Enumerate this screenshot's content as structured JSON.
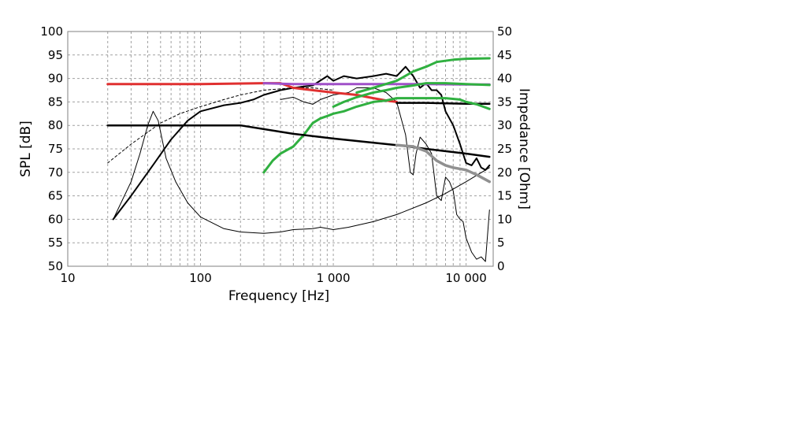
{
  "chart_data": {
    "type": "line",
    "title": "",
    "xlabel": "Frequency [Hz]",
    "ylabel": "SPL [dB]",
    "y2label": "Impedance [Ohm]",
    "xscale": "log",
    "xlim": [
      10,
      16000
    ],
    "ylim": [
      50,
      100
    ],
    "y2lim": [
      0,
      50
    ],
    "grid": true,
    "legend": "none",
    "x_ticks": [
      {
        "value": 10,
        "label": "10"
      },
      {
        "value": 100,
        "label": "100"
      },
      {
        "value": 1000,
        "label": "1 000"
      },
      {
        "value": 10000,
        "label": "10 000"
      }
    ],
    "y_ticks": [
      {
        "value": 50,
        "label": "50"
      },
      {
        "value": 55,
        "label": "55"
      },
      {
        "value": 60,
        "label": "60"
      },
      {
        "value": 65,
        "label": "65"
      },
      {
        "value": 70,
        "label": "70"
      },
      {
        "value": 75,
        "label": "75"
      },
      {
        "value": 80,
        "label": "80"
      },
      {
        "value": 85,
        "label": "85"
      },
      {
        "value": 90,
        "label": "90"
      },
      {
        "value": 95,
        "label": "95"
      },
      {
        "value": 100,
        "label": "100"
      }
    ],
    "y2_ticks": [
      {
        "value": 0,
        "label": "0"
      },
      {
        "value": 5,
        "label": "5"
      },
      {
        "value": 10,
        "label": "10"
      },
      {
        "value": 15,
        "label": "15"
      },
      {
        "value": 20,
        "label": "20"
      },
      {
        "value": 25,
        "label": "25"
      },
      {
        "value": 30,
        "label": "30"
      },
      {
        "value": 35,
        "label": "35"
      },
      {
        "value": 40,
        "label": "40"
      },
      {
        "value": 45,
        "label": "45"
      },
      {
        "value": 50,
        "label": "50"
      }
    ],
    "series": [
      {
        "axis": "left",
        "color": "#000000",
        "width": 2,
        "dash": "",
        "points": [
          [
            22,
            60
          ],
          [
            30,
            65
          ],
          [
            45,
            72
          ],
          [
            60,
            77
          ],
          [
            80,
            81
          ],
          [
            100,
            83
          ],
          [
            150,
            84.3
          ],
          [
            200,
            84.8
          ],
          [
            250,
            85.5
          ],
          [
            300,
            86.5
          ],
          [
            400,
            87.5
          ],
          [
            500,
            88
          ],
          [
            700,
            88.5
          ],
          [
            900,
            90.5
          ],
          [
            1000,
            89.5
          ],
          [
            1200,
            90.5
          ],
          [
            1500,
            90
          ],
          [
            2000,
            90.5
          ],
          [
            2500,
            91
          ],
          [
            3000,
            90.5
          ],
          [
            3500,
            92.5
          ],
          [
            4000,
            90.5
          ],
          [
            4500,
            88
          ],
          [
            5000,
            89
          ],
          [
            5500,
            87.5
          ],
          [
            6000,
            87.5
          ],
          [
            6500,
            86.5
          ],
          [
            7000,
            83
          ],
          [
            8000,
            80
          ],
          [
            9000,
            76
          ],
          [
            10000,
            72
          ],
          [
            11000,
            71.5
          ],
          [
            12000,
            73
          ],
          [
            13000,
            71
          ],
          [
            14000,
            70.5
          ],
          [
            15000,
            71.5
          ]
        ]
      },
      {
        "axis": "left",
        "color": "#000000",
        "width": 1,
        "dash": "",
        "points": [
          [
            22,
            60
          ],
          [
            30,
            68
          ],
          [
            35,
            74
          ],
          [
            40,
            80
          ],
          [
            44,
            83
          ],
          [
            48,
            81
          ],
          [
            55,
            73
          ],
          [
            65,
            68
          ],
          [
            80,
            63.5
          ],
          [
            100,
            60.5
          ],
          [
            150,
            58
          ],
          [
            200,
            57.3
          ],
          [
            300,
            57
          ],
          [
            400,
            57.3
          ],
          [
            500,
            57.8
          ],
          [
            700,
            58
          ],
          [
            800,
            58.3
          ],
          [
            1000,
            57.8
          ],
          [
            1300,
            58.3
          ],
          [
            2000,
            59.5
          ],
          [
            3000,
            61
          ],
          [
            5000,
            63.5
          ],
          [
            7000,
            65.5
          ],
          [
            10000,
            68
          ],
          [
            15000,
            71
          ]
        ]
      },
      {
        "axis": "left",
        "color": "#000000",
        "width": 1,
        "dash": "",
        "points": [
          [
            400,
            85.5
          ],
          [
            500,
            86
          ],
          [
            600,
            85
          ],
          [
            700,
            84.5
          ],
          [
            800,
            85.5
          ],
          [
            1000,
            86.5
          ],
          [
            1300,
            87
          ],
          [
            1500,
            88
          ],
          [
            2000,
            88
          ],
          [
            2500,
            87
          ],
          [
            3000,
            85
          ],
          [
            3500,
            78
          ],
          [
            3800,
            70
          ],
          [
            4000,
            69.5
          ],
          [
            4200,
            74
          ],
          [
            4500,
            77.5
          ],
          [
            5000,
            76
          ],
          [
            5500,
            74
          ],
          [
            6000,
            65
          ],
          [
            6500,
            64
          ],
          [
            7000,
            69
          ],
          [
            7500,
            68
          ],
          [
            8000,
            66
          ],
          [
            8500,
            61
          ],
          [
            9000,
            60
          ],
          [
            9500,
            59.5
          ],
          [
            10000,
            56
          ],
          [
            11000,
            53
          ],
          [
            12000,
            51.5
          ],
          [
            13000,
            52
          ],
          [
            14000,
            51
          ],
          [
            15000,
            62
          ]
        ]
      },
      {
        "axis": "left",
        "color": "#000000",
        "width": 1,
        "dash": "3,3",
        "points": [
          [
            20,
            72
          ],
          [
            30,
            76
          ],
          [
            50,
            80.5
          ],
          [
            70,
            82.5
          ],
          [
            100,
            84
          ],
          [
            150,
            85.5
          ],
          [
            200,
            86.5
          ],
          [
            300,
            87.5
          ],
          [
            500,
            88
          ],
          [
            700,
            88
          ],
          [
            1000,
            87.5
          ]
        ]
      },
      {
        "axis": "left",
        "color": "#e03030",
        "width": 3,
        "dash": "",
        "points": [
          [
            20,
            88.8
          ],
          [
            100,
            88.8
          ],
          [
            300,
            89
          ],
          [
            400,
            89
          ],
          [
            500,
            88
          ],
          [
            700,
            87.5
          ],
          [
            1000,
            87
          ],
          [
            1500,
            86.5
          ],
          [
            2000,
            85.8
          ],
          [
            2500,
            85.3
          ],
          [
            3000,
            85
          ]
        ]
      },
      {
        "axis": "left",
        "color": "#a050c8",
        "width": 3,
        "dash": "",
        "points": [
          [
            300,
            89
          ],
          [
            500,
            88.8
          ],
          [
            1000,
            88.8
          ],
          [
            2000,
            88.8
          ],
          [
            5000,
            88.8
          ],
          [
            10000,
            88.7
          ],
          [
            15000,
            88.7
          ]
        ]
      },
      {
        "axis": "left",
        "color": "#000000",
        "width": 2.5,
        "dash": "",
        "points": [
          [
            3000,
            84.8
          ],
          [
            5000,
            84.8
          ],
          [
            10000,
            84.6
          ],
          [
            15000,
            84.6
          ]
        ]
      },
      {
        "axis": "left",
        "color": "#30b040",
        "width": 3,
        "dash": "",
        "points": [
          [
            300,
            70
          ],
          [
            350,
            72.5
          ],
          [
            400,
            74
          ],
          [
            500,
            75.5
          ],
          [
            600,
            78
          ],
          [
            700,
            80.5
          ],
          [
            800,
            81.5
          ],
          [
            900,
            82
          ],
          [
            1000,
            82.5
          ],
          [
            1200,
            83
          ],
          [
            1500,
            84
          ],
          [
            2000,
            85
          ],
          [
            2500,
            85.3
          ],
          [
            3000,
            85.8
          ],
          [
            4000,
            85.8
          ],
          [
            5000,
            85.8
          ],
          [
            7000,
            85.8
          ],
          [
            9000,
            85.5
          ],
          [
            10000,
            85
          ],
          [
            12000,
            84.5
          ],
          [
            15000,
            83.5
          ]
        ]
      },
      {
        "axis": "left",
        "color": "#30b040",
        "width": 3,
        "dash": "",
        "points": [
          [
            1000,
            84
          ],
          [
            1200,
            85
          ],
          [
            1500,
            86
          ],
          [
            2000,
            87
          ],
          [
            2500,
            87.5
          ],
          [
            3000,
            88
          ],
          [
            4000,
            88.5
          ],
          [
            5000,
            89
          ],
          [
            7000,
            89
          ],
          [
            10000,
            88.8
          ],
          [
            15000,
            88.6
          ]
        ]
      },
      {
        "axis": "left",
        "color": "#30b040",
        "width": 3,
        "dash": "",
        "points": [
          [
            1500,
            87
          ],
          [
            2000,
            88
          ],
          [
            3000,
            89.5
          ],
          [
            4000,
            91.5
          ],
          [
            5000,
            92.5
          ],
          [
            6000,
            93.5
          ],
          [
            8000,
            94
          ],
          [
            10000,
            94.2
          ],
          [
            15000,
            94.3
          ]
        ]
      },
      {
        "axis": "right",
        "color": "#000000",
        "width": 2.5,
        "dash": "",
        "points": [
          [
            20,
            30
          ],
          [
            100,
            30
          ],
          [
            200,
            30
          ],
          [
            500,
            28.2
          ],
          [
            1000,
            27.2
          ],
          [
            3000,
            25.8
          ],
          [
            5000,
            25
          ],
          [
            10000,
            24
          ],
          [
            15000,
            23.3
          ]
        ]
      },
      {
        "axis": "right",
        "color": "#909090",
        "width": 3.5,
        "dash": "",
        "points": [
          [
            3000,
            25.8
          ],
          [
            4000,
            25.5
          ],
          [
            5000,
            24.5
          ],
          [
            6000,
            22.5
          ],
          [
            7000,
            21.5
          ],
          [
            8000,
            21
          ],
          [
            10000,
            20.5
          ],
          [
            12000,
            19.5
          ],
          [
            15000,
            18
          ]
        ]
      }
    ]
  }
}
